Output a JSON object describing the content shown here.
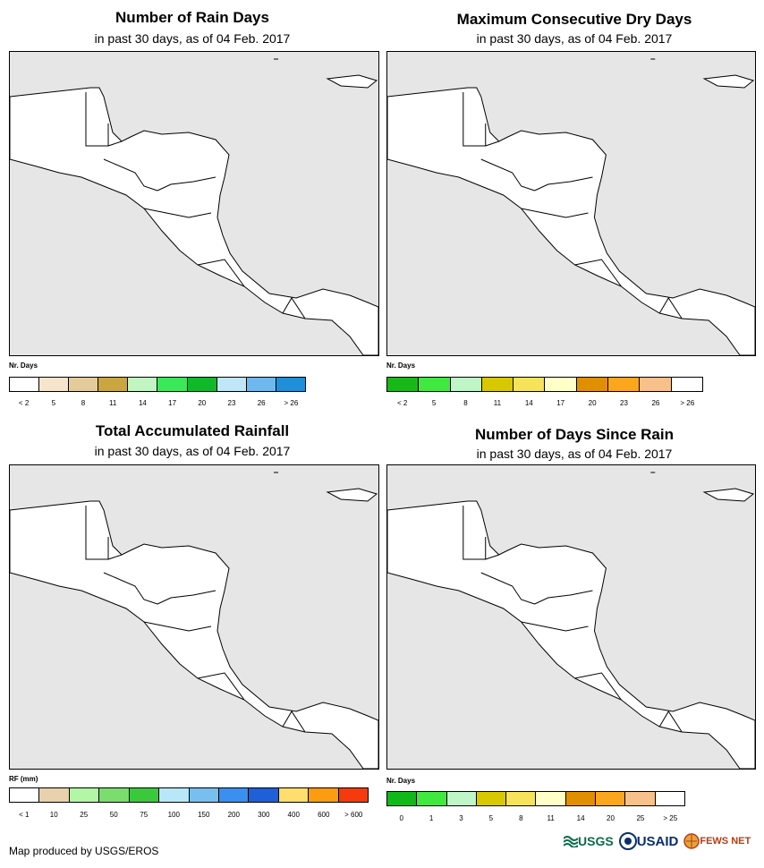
{
  "panels": [
    {
      "title": "Number of Rain Days",
      "subtitle": "in past 30 days, as of 04 Feb. 2017",
      "legend": {
        "unit": "Nr. Days",
        "colors": [
          "#ffffff",
          "#f6e4cc",
          "#e5cb9c",
          "#c9a640",
          "#c3f5c3",
          "#3ae85a",
          "#10b82a",
          "#c0e6f7",
          "#6fb8ee",
          "#1e8fd8"
        ],
        "ticks": [
          "< 2",
          "5",
          "8",
          "11",
          "14",
          "17",
          "20",
          "23",
          "26",
          "> 26"
        ]
      }
    },
    {
      "title": "Maximum Consecutive Dry Days",
      "subtitle": "in past 30 days, as of 04 Feb. 2017",
      "legend": {
        "unit": "Nr. Days",
        "colors": [
          "#18b818",
          "#40e840",
          "#c0f5c8",
          "#d7c800",
          "#f6e35a",
          "#ffffc8",
          "#e08f00",
          "#fba61d",
          "#f8c08b",
          "#ffffff"
        ],
        "ticks": [
          "< 2",
          "5",
          "8",
          "11",
          "14",
          "17",
          "20",
          "23",
          "26",
          "> 26"
        ]
      }
    },
    {
      "title": "Total Accumulated Rainfall",
      "subtitle": "in past 30 days, as of 04 Feb. 2017",
      "legend": {
        "unit": "RF (mm)",
        "colors": [
          "#ffffff",
          "#e9d1ad",
          "#b2f6a6",
          "#7add6e",
          "#3cc83c",
          "#b8e8f8",
          "#78bfef",
          "#3b8ff0",
          "#1f5fd8",
          "#ffde6e",
          "#fd9b11",
          "#f53a0e"
        ],
        "ticks": [
          "< 1",
          "10",
          "25",
          "50",
          "75",
          "100",
          "150",
          "200",
          "300",
          "400",
          "600",
          "> 600"
        ]
      }
    },
    {
      "title": "Number of Days Since Rain",
      "subtitle": "in past 30 days, as of 04 Feb. 2017",
      "legend": {
        "unit": "Nr. Days",
        "colors": [
          "#10b81a",
          "#40e840",
          "#c0f5c8",
          "#d7c800",
          "#f6e35a",
          "#ffffc8",
          "#e08f00",
          "#fba61d",
          "#f8c08b",
          "#ffffff"
        ],
        "ticks": [
          "0",
          "1",
          "3",
          "5",
          "8",
          "11",
          "14",
          "20",
          "25",
          "> 25"
        ]
      }
    }
  ],
  "credit": "Map produced by USGS/EROS",
  "logos": {
    "usgs": "USGS",
    "usaid": "USAID",
    "fews": "FEWS NET"
  },
  "colors": {
    "ocean": "#e6e6e6",
    "land": "#ffffff",
    "border": "#000000"
  }
}
